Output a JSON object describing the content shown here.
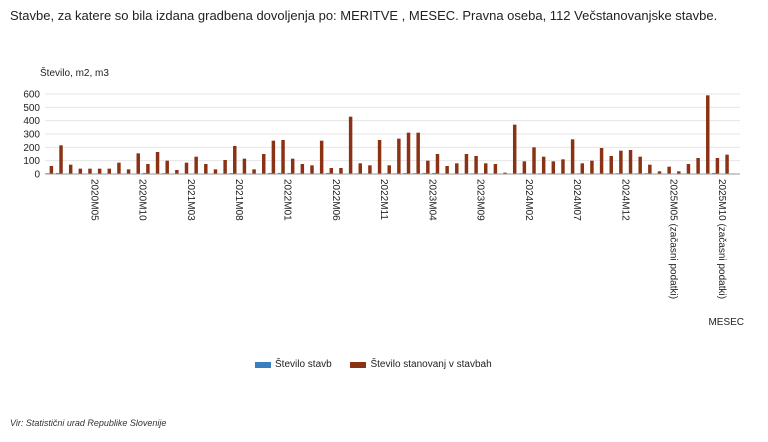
{
  "page": {
    "title": "Stavbe, za katere so bila izdana gradbena dovoljenja po: MERITVE ,  MESEC. Pravna oseba, 112 Večstanovanjske stavbe.",
    "source": "Vir: Statistični urad Republike Slovenije"
  },
  "chart_data": {
    "type": "bar",
    "yaxis_title": "Število, m2, m3",
    "xlabel": "MESEC",
    "ylim": [
      0,
      600
    ],
    "yticks": [
      0,
      100,
      200,
      300,
      400,
      500,
      600
    ],
    "grid": true,
    "legend_position": "bottom",
    "start_period": "2020M01",
    "categories": [
      "2020M01",
      "2020M02",
      "2020M03",
      "2020M04",
      "2020M05",
      "2020M06",
      "2020M07",
      "2020M08",
      "2020M09",
      "2020M10",
      "2020M11",
      "2020M12",
      "2021M01",
      "2021M02",
      "2021M03",
      "2021M04",
      "2021M05",
      "2021M06",
      "2021M07",
      "2021M08",
      "2021M09",
      "2021M10",
      "2021M11",
      "2021M12",
      "2022M01",
      "2022M02",
      "2022M03",
      "2022M04",
      "2022M05",
      "2022M06",
      "2022M07",
      "2022M08",
      "2022M09",
      "2022M10",
      "2022M11",
      "2022M12",
      "2023M01",
      "2023M02",
      "2023M03",
      "2023M04",
      "2023M05",
      "2023M06",
      "2023M07",
      "2023M08",
      "2023M09",
      "2023M10",
      "2023M11",
      "2023M12",
      "2024M01",
      "2024M02",
      "2024M03",
      "2024M04",
      "2024M05",
      "2024M06",
      "2024M07",
      "2024M08",
      "2024M09",
      "2024M10",
      "2024M11",
      "2024M12",
      "2025M01",
      "2025M02",
      "2025M03",
      "2025M04",
      "2025M05 (začasni podatki)",
      "2025M06 (začasni podatki)",
      "2025M07 (začasni podatki)",
      "2025M08 (začasni podatki)",
      "2025M09 (začasni podatki)",
      "2025M10 (začasni podatki)",
      "2025M11 (začasni podatki)",
      "2025M12 (začasni podatki)"
    ],
    "tick_labels": [
      {
        "index": 4,
        "label": "2020M05"
      },
      {
        "index": 9,
        "label": "2020M10"
      },
      {
        "index": 14,
        "label": "2021M03"
      },
      {
        "index": 19,
        "label": "2021M08"
      },
      {
        "index": 24,
        "label": "2022M01"
      },
      {
        "index": 29,
        "label": "2022M06"
      },
      {
        "index": 34,
        "label": "2022M11"
      },
      {
        "index": 39,
        "label": "2023M04"
      },
      {
        "index": 44,
        "label": "2023M09"
      },
      {
        "index": 49,
        "label": "2024M02"
      },
      {
        "index": 54,
        "label": "2024M07"
      },
      {
        "index": 59,
        "label": "2024M12"
      },
      {
        "index": 64,
        "label": "2025M05 (začasni podatki)"
      },
      {
        "index": 69,
        "label": "2025M10 (začasni podatki)"
      }
    ],
    "series": [
      {
        "name": "Število stavb",
        "color": "#3a7ebf",
        "values": [
          6,
          8,
          4,
          2,
          3,
          3,
          3,
          4,
          3,
          2,
          8,
          4,
          6,
          3,
          3,
          4,
          3,
          2,
          3,
          7,
          4,
          3,
          3,
          8,
          8,
          8,
          5,
          4,
          4,
          8,
          3,
          3,
          5,
          4,
          4,
          5,
          5,
          7,
          6,
          8,
          8,
          4,
          3,
          3,
          5,
          5,
          3,
          3,
          3,
          6,
          4,
          5,
          5,
          3,
          4,
          5,
          3,
          4,
          5,
          6,
          5,
          5,
          6,
          3,
          3,
          2,
          4,
          2,
          3,
          8,
          3,
          4
        ]
      },
      {
        "name": "Število stanovanj v stavbah",
        "color": "#8c3214",
        "values": [
          60,
          215,
          70,
          40,
          40,
          40,
          40,
          85,
          35,
          155,
          75,
          165,
          100,
          30,
          85,
          130,
          75,
          35,
          105,
          210,
          115,
          35,
          150,
          250,
          255,
          115,
          75,
          65,
          250,
          45,
          45,
          430,
          80,
          65,
          255,
          65,
          265,
          310,
          310,
          100,
          150,
          60,
          80,
          150,
          135,
          80,
          75,
          10,
          370,
          95,
          200,
          130,
          95,
          110,
          260,
          80,
          100,
          195,
          135,
          175,
          180,
          130,
          70,
          20,
          55,
          20,
          75,
          120,
          590,
          120,
          145,
          0
        ]
      }
    ]
  }
}
